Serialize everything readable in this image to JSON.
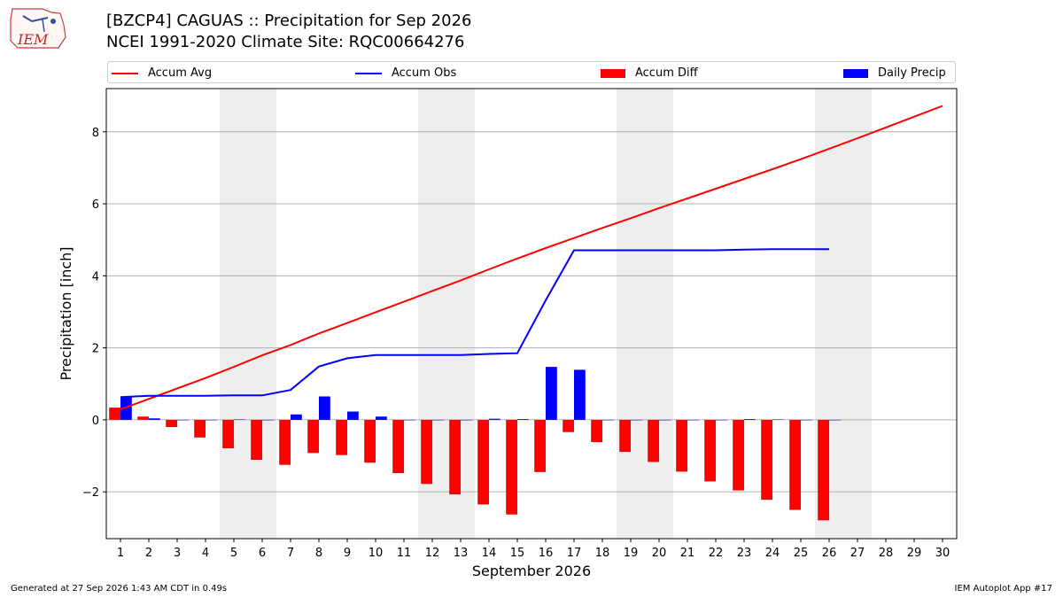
{
  "header": {
    "logo_text": "IEM",
    "title_line1": "[BZCP4] CAGUAS :: Precipitation for Sep 2026",
    "title_line2": "NCEI 1991-2020 Climate Site: RQC00664276"
  },
  "footer": {
    "generated": "Generated at 27 Sep 2026 1:43 AM CDT in 0.49s",
    "app": "IEM Autoplot App #17"
  },
  "colors": {
    "avg": "#ff0000",
    "obs": "#0000ff",
    "diff": "#ff0000",
    "daily": "#0000ff",
    "weekend_band": "#eeeeee",
    "grid": "#b0b0b0"
  },
  "chart_data": {
    "type": "bar",
    "xlabel": "September 2026",
    "ylabel": "Precipitation [inch]",
    "xlim": [
      0.5,
      30.5
    ],
    "ylim": [
      -3.3,
      9.2
    ],
    "yticks": [
      -2,
      0,
      2,
      4,
      6,
      8
    ],
    "days": [
      1,
      2,
      3,
      4,
      5,
      6,
      7,
      8,
      9,
      10,
      11,
      12,
      13,
      14,
      15,
      16,
      17,
      18,
      19,
      20,
      21,
      22,
      23,
      24,
      25,
      26,
      27,
      28,
      29,
      30
    ],
    "weekend_days": [
      5,
      6,
      12,
      13,
      19,
      20,
      26,
      27
    ],
    "legend": [
      "Accum Avg",
      "Accum Obs",
      "Accum Diff",
      "Daily Precip"
    ],
    "grid": true,
    "series": [
      {
        "name": "Accum Avg",
        "type": "line",
        "values": [
          0.29,
          0.58,
          0.87,
          1.16,
          1.47,
          1.79,
          2.08,
          2.4,
          2.69,
          2.99,
          3.28,
          3.58,
          3.87,
          4.18,
          4.48,
          4.77,
          5.05,
          5.33,
          5.6,
          5.88,
          6.15,
          6.42,
          6.69,
          6.96,
          7.24,
          7.53,
          7.82,
          8.12,
          8.42,
          8.72
        ]
      },
      {
        "name": "Accum Obs",
        "type": "line",
        "values": [
          0.63,
          0.67,
          0.67,
          0.67,
          0.68,
          0.68,
          0.83,
          1.48,
          1.71,
          1.8,
          1.8,
          1.8,
          1.8,
          1.83,
          1.85,
          3.32,
          4.71,
          4.71,
          4.71,
          4.71,
          4.71,
          4.71,
          4.73,
          4.74,
          4.74,
          4.74
        ]
      },
      {
        "name": "Accum Diff",
        "type": "bar",
        "values": [
          0.34,
          0.09,
          -0.2,
          -0.49,
          -0.79,
          -1.11,
          -1.25,
          -0.92,
          -0.98,
          -1.19,
          -1.48,
          -1.78,
          -2.07,
          -2.35,
          -2.63,
          -1.45,
          -0.34,
          -0.62,
          -0.89,
          -1.17,
          -1.44,
          -1.71,
          -1.96,
          -2.22,
          -2.5,
          -2.79
        ]
      },
      {
        "name": "Daily Precip",
        "type": "bar",
        "values": [
          0.63,
          0.04,
          0,
          0,
          0.01,
          0,
          0.15,
          0.65,
          0.23,
          0.09,
          0,
          0,
          0,
          0.03,
          0.02,
          1.47,
          1.39,
          0,
          0,
          0,
          0,
          0,
          0.02,
          0.01,
          0,
          0
        ]
      }
    ]
  }
}
